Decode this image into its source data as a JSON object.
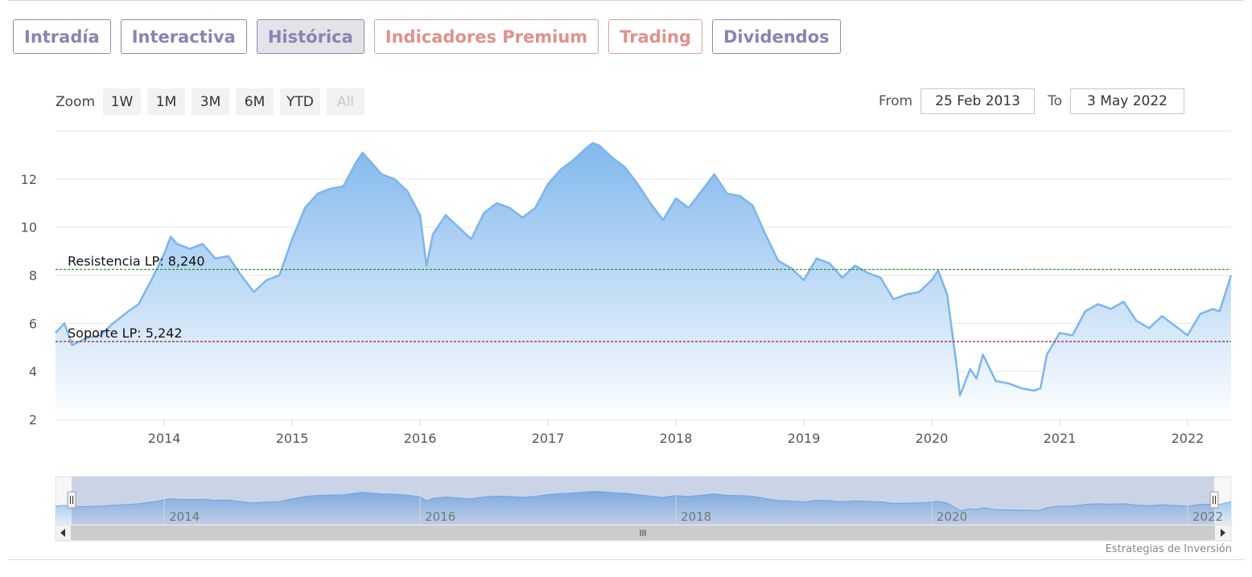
{
  "tabs": [
    {
      "label": "Intradía",
      "active": false,
      "premium": false
    },
    {
      "label": "Interactiva",
      "active": false,
      "premium": false
    },
    {
      "label": "Histórica",
      "active": true,
      "premium": false
    },
    {
      "label": "Indicadores Premium",
      "active": false,
      "premium": true
    },
    {
      "label": "Trading",
      "active": false,
      "premium": true
    },
    {
      "label": "Dividendos",
      "active": false,
      "premium": false
    }
  ],
  "zoom": {
    "label": "Zoom",
    "buttons": [
      "1W",
      "1M",
      "3M",
      "6M",
      "YTD",
      "All"
    ],
    "disabled": "All"
  },
  "range": {
    "from_label": "From",
    "from_value": "25 Feb 2013",
    "to_label": "To",
    "to_value": "3 May 2022"
  },
  "credits": "Estrategias de Inversión",
  "colors": {
    "line": "#7cb5ec",
    "area_top": "#7cb5ec",
    "area_bottom": "#ffffff",
    "resistance": "#1e8a1e",
    "support": "#a01f1f",
    "tab_text": "#8884b3",
    "tab_premium": "#e0918b"
  },
  "chart_data": {
    "type": "area",
    "title": "",
    "xlabel": "",
    "ylabel": "",
    "xlim": [
      2013.15,
      2022.34
    ],
    "ylim": [
      2,
      14
    ],
    "y_ticks": [
      2,
      4,
      6,
      8,
      10,
      12
    ],
    "x_ticks": [
      2014,
      2015,
      2016,
      2017,
      2018,
      2019,
      2020,
      2021,
      2022
    ],
    "grid": true,
    "series": [
      {
        "x": [
          2013.15,
          2013.22,
          2013.28,
          2013.4,
          2013.5,
          2013.6,
          2013.72,
          2013.8,
          2013.9,
          2014.0,
          2014.05,
          2014.1,
          2014.2,
          2014.3,
          2014.4,
          2014.5,
          2014.6,
          2014.7,
          2014.8,
          2014.9,
          2015.0,
          2015.1,
          2015.2,
          2015.3,
          2015.4,
          2015.5,
          2015.55,
          2015.6,
          2015.7,
          2015.8,
          2015.9,
          2016.0,
          2016.05,
          2016.1,
          2016.2,
          2016.3,
          2016.4,
          2016.5,
          2016.6,
          2016.7,
          2016.8,
          2016.9,
          2017.0,
          2017.1,
          2017.2,
          2017.3,
          2017.35,
          2017.4,
          2017.5,
          2017.6,
          2017.7,
          2017.8,
          2017.9,
          2018.0,
          2018.1,
          2018.2,
          2018.3,
          2018.4,
          2018.5,
          2018.6,
          2018.7,
          2018.8,
          2018.9,
          2019.0,
          2019.1,
          2019.2,
          2019.3,
          2019.4,
          2019.5,
          2019.6,
          2019.7,
          2019.8,
          2019.9,
          2020.0,
          2020.05,
          2020.12,
          2020.2,
          2020.22,
          2020.3,
          2020.35,
          2020.4,
          2020.5,
          2020.6,
          2020.7,
          2020.8,
          2020.85,
          2020.9,
          2021.0,
          2021.1,
          2021.15,
          2021.2,
          2021.3,
          2021.4,
          2021.5,
          2021.6,
          2021.7,
          2021.8,
          2021.9,
          2022.0,
          2022.1,
          2022.2,
          2022.25,
          2022.34
        ],
        "y": [
          5.6,
          6.0,
          5.1,
          5.4,
          5.5,
          6.0,
          6.5,
          6.8,
          7.8,
          8.9,
          9.6,
          9.3,
          9.1,
          9.3,
          8.7,
          8.8,
          8.0,
          7.3,
          7.8,
          8.0,
          9.5,
          10.8,
          11.4,
          11.6,
          11.7,
          12.7,
          13.1,
          12.8,
          12.2,
          12.0,
          11.5,
          10.5,
          8.4,
          9.7,
          10.5,
          10.0,
          9.5,
          10.6,
          11.0,
          10.8,
          10.4,
          10.8,
          11.8,
          12.4,
          12.8,
          13.3,
          13.5,
          13.4,
          12.9,
          12.5,
          11.8,
          11.0,
          10.3,
          11.2,
          10.8,
          11.5,
          12.2,
          11.4,
          11.3,
          10.9,
          9.7,
          8.6,
          8.3,
          7.8,
          8.7,
          8.5,
          7.9,
          8.4,
          8.1,
          7.9,
          7.0,
          7.2,
          7.3,
          7.8,
          8.2,
          7.2,
          4.0,
          3.0,
          4.1,
          3.7,
          4.7,
          3.6,
          3.5,
          3.3,
          3.2,
          3.3,
          4.7,
          5.6,
          5.5,
          6.0,
          6.5,
          6.8,
          6.6,
          6.9,
          6.1,
          5.8,
          6.3,
          5.9,
          5.5,
          6.4,
          6.6,
          6.5,
          8.0
        ]
      }
    ],
    "lines": [
      {
        "label": "Resistencia LP: 8,240",
        "value": 8.24
      },
      {
        "label": "Soporte LP: 5,242",
        "value": 5.242
      }
    ],
    "navigator": {
      "x_ticks": [
        2014,
        2016,
        2018,
        2020,
        2022
      ]
    }
  }
}
